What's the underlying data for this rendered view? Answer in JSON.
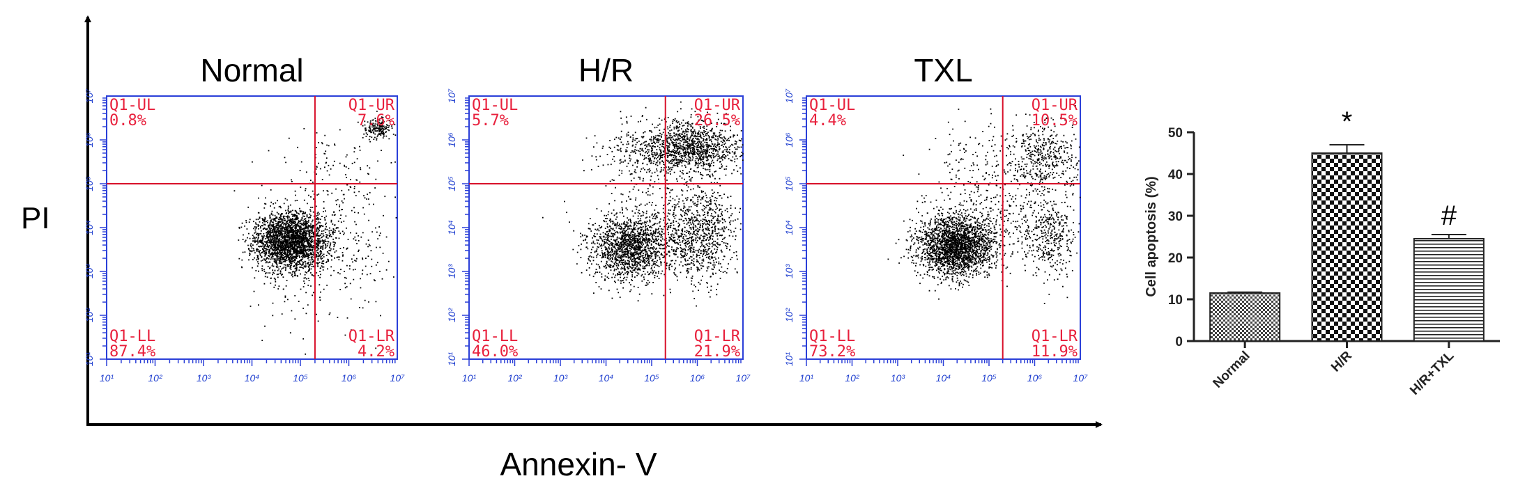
{
  "figure": {
    "y_axis_label": "PI",
    "x_axis_label": "Annexin- V"
  },
  "chart_data": [
    {
      "type": "scatter",
      "title": "Normal",
      "xlabel": "Annexin- V",
      "ylabel": "PI",
      "x_scale": "log",
      "y_scale": "log",
      "xlim": [
        10,
        10000000
      ],
      "ylim": [
        10,
        10000000
      ],
      "x_ticks": [
        "10¹",
        "10²",
        "10³",
        "10⁴",
        "10⁵",
        "10⁶",
        "10⁷"
      ],
      "y_ticks": [
        "10¹",
        "10²",
        "10³",
        "10⁴",
        "10⁵",
        "10⁶",
        "10⁷"
      ],
      "gate": {
        "x": 200000,
        "y": 100000
      },
      "quadrants": [
        {
          "name": "Q1-UL",
          "percent": "0.8%",
          "position": "top-left"
        },
        {
          "name": "Q1-UR",
          "percent": "7.6%",
          "position": "top-right"
        },
        {
          "name": "Q1-LL",
          "percent": "87.4%",
          "position": "bottom-left"
        },
        {
          "name": "Q1-LR",
          "percent": "4.2%",
          "position": "bottom-right"
        }
      ],
      "populations": [
        {
          "cx": 4.8,
          "cy": 3.7,
          "sx": 0.38,
          "sy": 0.34,
          "n": 2600
        },
        {
          "cx": 5.7,
          "cy": 5.0,
          "sx": 0.55,
          "sy": 0.7,
          "n": 180
        },
        {
          "cx": 6.6,
          "cy": 6.25,
          "sx": 0.14,
          "sy": 0.12,
          "n": 170
        },
        {
          "cx": 6.0,
          "cy": 3.5,
          "sx": 0.45,
          "sy": 0.6,
          "n": 120
        },
        {
          "cx": 5.0,
          "cy": 2.6,
          "sx": 0.7,
          "sy": 0.6,
          "n": 60
        }
      ],
      "seed": 11
    },
    {
      "type": "scatter",
      "title": "H/R",
      "xlabel": "Annexin- V",
      "ylabel": "PI",
      "x_scale": "log",
      "y_scale": "log",
      "xlim": [
        10,
        10000000
      ],
      "ylim": [
        10,
        10000000
      ],
      "x_ticks": [
        "10¹",
        "10²",
        "10³",
        "10⁴",
        "10⁵",
        "10⁶",
        "10⁷"
      ],
      "y_ticks": [
        "10¹",
        "10²",
        "10³",
        "10⁴",
        "10⁵",
        "10⁶",
        "10⁷"
      ],
      "gate": {
        "x": 200000,
        "y": 100000
      },
      "quadrants": [
        {
          "name": "Q1-UL",
          "percent": "5.7%",
          "position": "top-left"
        },
        {
          "name": "Q1-UR",
          "percent": "26.5%",
          "position": "top-right"
        },
        {
          "name": "Q1-LL",
          "percent": "46.0%",
          "position": "bottom-left"
        },
        {
          "name": "Q1-LR",
          "percent": "21.9%",
          "position": "bottom-right"
        }
      ],
      "populations": [
        {
          "cx": 4.5,
          "cy": 3.55,
          "sx": 0.42,
          "sy": 0.38,
          "n": 1500
        },
        {
          "cx": 6.0,
          "cy": 3.85,
          "sx": 0.42,
          "sy": 0.5,
          "n": 850
        },
        {
          "cx": 5.9,
          "cy": 5.85,
          "sx": 0.55,
          "sy": 0.3,
          "n": 1100
        },
        {
          "cx": 4.7,
          "cy": 5.75,
          "sx": 0.5,
          "sy": 0.35,
          "n": 220
        },
        {
          "cx": 5.3,
          "cy": 4.7,
          "sx": 0.8,
          "sy": 0.7,
          "n": 200
        }
      ],
      "seed": 23
    },
    {
      "type": "scatter",
      "title": "TXL",
      "xlabel": "Annexin- V",
      "ylabel": "PI",
      "x_scale": "log",
      "y_scale": "log",
      "xlim": [
        10,
        10000000
      ],
      "ylim": [
        10,
        10000000
      ],
      "x_ticks": [
        "10¹",
        "10²",
        "10³",
        "10⁴",
        "10⁵",
        "10⁶",
        "10⁷"
      ],
      "y_ticks": [
        "10¹",
        "10²",
        "10³",
        "10⁴",
        "10⁵",
        "10⁶",
        "10⁷"
      ],
      "gate": {
        "x": 200000,
        "y": 100000
      },
      "quadrants": [
        {
          "name": "Q1-UL",
          "percent": "4.4%",
          "position": "top-left"
        },
        {
          "name": "Q1-UR",
          "percent": "10.5%",
          "position": "top-right"
        },
        {
          "name": "Q1-LL",
          "percent": "73.2%",
          "position": "bottom-left"
        },
        {
          "name": "Q1-LR",
          "percent": "11.9%",
          "position": "bottom-right"
        }
      ],
      "populations": [
        {
          "cx": 4.25,
          "cy": 3.6,
          "sx": 0.4,
          "sy": 0.35,
          "n": 2300
        },
        {
          "cx": 6.3,
          "cy": 3.8,
          "sx": 0.3,
          "sy": 0.45,
          "n": 380
        },
        {
          "cx": 6.2,
          "cy": 5.6,
          "sx": 0.4,
          "sy": 0.4,
          "n": 430
        },
        {
          "cx": 4.9,
          "cy": 5.3,
          "sx": 0.6,
          "sy": 0.6,
          "n": 200
        },
        {
          "cx": 5.2,
          "cy": 4.1,
          "sx": 0.6,
          "sy": 0.5,
          "n": 200
        }
      ],
      "seed": 37
    },
    {
      "type": "bar",
      "title": "",
      "categories": [
        "Normal",
        "H/R",
        "H/R+TXL"
      ],
      "values": [
        11.5,
        45,
        24.5
      ],
      "errors": [
        0.2,
        2.0,
        1.0
      ],
      "annotations": [
        "",
        "*",
        "#"
      ],
      "patterns": [
        "fine-checker",
        "checker",
        "horizontal-lines"
      ],
      "xlabel": "",
      "ylabel": "Cell apoptosis (%)",
      "ylim": [
        0,
        50
      ],
      "yticks": [
        0,
        10,
        20,
        30,
        40,
        50
      ]
    }
  ]
}
